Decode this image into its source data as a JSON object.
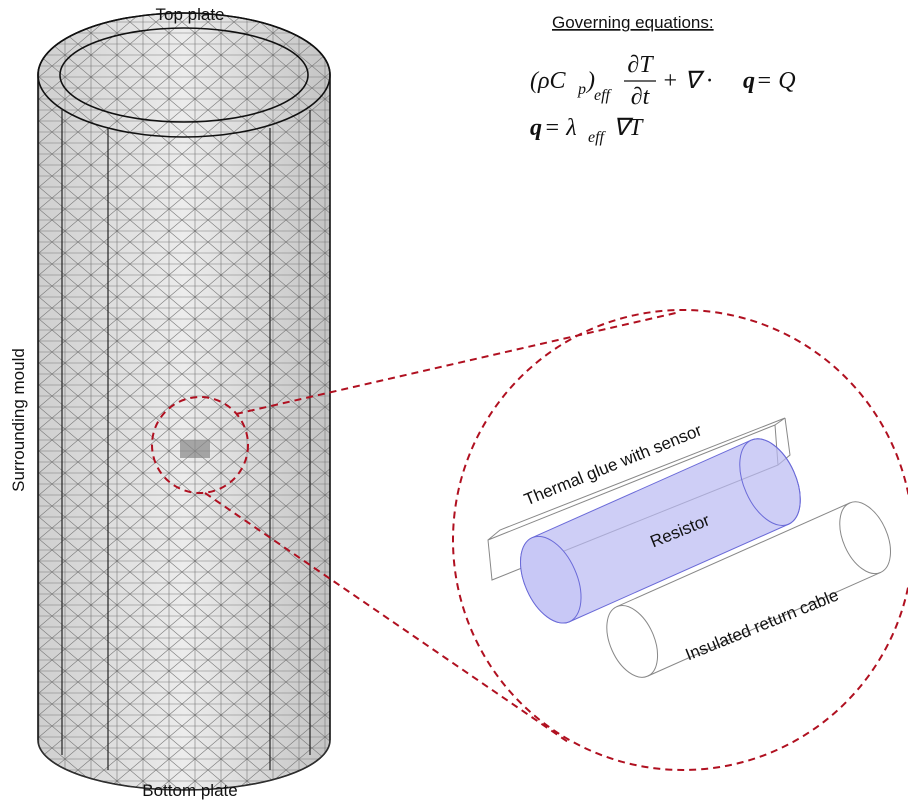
{
  "labels": {
    "top": "Top plate",
    "side": "Surrounding mould",
    "bottom": "Bottom plate"
  },
  "equations": {
    "heading": "Governing equations:",
    "first": [
      "(ρC",
      "p",
      ")",
      "eff",
      "∂T",
      "∂t",
      "+ ∇ · ",
      "q",
      " = Q"
    ],
    "second": [
      "q",
      " = λ",
      "eff",
      "∇T"
    ]
  },
  "detail": {
    "glue": "Thermal glue with sensor",
    "resistor": "Resistor",
    "cable": "Insulated return cable"
  }
}
